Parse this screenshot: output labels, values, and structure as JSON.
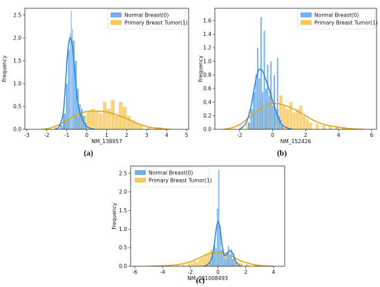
{
  "colors": {
    "normal": "#4C9BE8",
    "tumor": "#F6B93B",
    "normal_line": "#2E86DE",
    "tumor_line": "#E1A214"
  },
  "chart_data": [
    {
      "type": "histogram",
      "caption": "(a)",
      "xlabel": "NM_138957",
      "ylabel": "Frequency",
      "xlim": [
        -3.1,
        5.1
      ],
      "ylim": [
        0,
        2.65
      ],
      "xticks": [
        -3,
        -2,
        -1,
        0,
        1,
        2,
        3,
        4,
        5
      ],
      "yticks": [
        0.0,
        0.5,
        1.0,
        1.5,
        2.0,
        2.5
      ],
      "legend_position": "top-right",
      "series": [
        {
          "name": "Normal Breast(0)",
          "color_key": "normal",
          "bins": [
            {
              "x0": -1.35,
              "x1": -1.2,
              "y": 0.1
            },
            {
              "x0": -1.2,
              "x1": -1.05,
              "y": 0.35
            },
            {
              "x0": -1.05,
              "x1": -0.95,
              "y": 1.0
            },
            {
              "x0": -0.95,
              "x1": -0.85,
              "y": 1.75
            },
            {
              "x0": -0.85,
              "x1": -0.8,
              "y": 2.1
            },
            {
              "x0": -0.8,
              "x1": -0.75,
              "y": 2.6
            },
            {
              "x0": -0.75,
              "x1": -0.7,
              "y": 2.2
            },
            {
              "x0": -0.7,
              "x1": -0.6,
              "y": 1.95
            },
            {
              "x0": -0.6,
              "x1": -0.5,
              "y": 1.5
            },
            {
              "x0": -0.5,
              "x1": -0.4,
              "y": 0.9
            },
            {
              "x0": -0.4,
              "x1": -0.3,
              "y": 0.55
            },
            {
              "x0": -0.3,
              "x1": -0.2,
              "y": 0.45
            },
            {
              "x0": -0.2,
              "x1": -0.1,
              "y": 0.3
            },
            {
              "x0": -0.1,
              "x1": 0.0,
              "y": 0.15
            }
          ],
          "kde": {
            "x": [
              -1.6,
              -1.4,
              -1.2,
              -1.1,
              -1.0,
              -0.9,
              -0.8,
              -0.7,
              -0.6,
              -0.5,
              -0.4,
              -0.3,
              -0.2,
              -0.1,
              0.0,
              0.2,
              0.4
            ],
            "y": [
              0.0,
              0.05,
              0.3,
              0.75,
              1.45,
              1.9,
              2.0,
              1.75,
              1.25,
              0.75,
              0.45,
              0.3,
              0.2,
              0.12,
              0.06,
              0.02,
              0.0
            ]
          }
        },
        {
          "name": "Primary Breast Tumor(1)",
          "color_key": "tumor",
          "bins": [
            {
              "x0": -1.6,
              "x1": -1.4,
              "y": 0.05
            },
            {
              "x0": -1.2,
              "x1": -1.0,
              "y": 0.2
            },
            {
              "x0": -1.0,
              "x1": -0.8,
              "y": 0.25
            },
            {
              "x0": -0.6,
              "x1": -0.4,
              "y": 0.3
            },
            {
              "x0": -0.4,
              "x1": -0.2,
              "y": 0.35
            },
            {
              "x0": -0.2,
              "x1": 0.0,
              "y": 0.3
            },
            {
              "x0": 0.0,
              "x1": 0.2,
              "y": 0.4
            },
            {
              "x0": 0.2,
              "x1": 0.4,
              "y": 0.45
            },
            {
              "x0": 0.4,
              "x1": 0.6,
              "y": 0.4
            },
            {
              "x0": 0.6,
              "x1": 0.8,
              "y": 0.35
            },
            {
              "x0": 0.8,
              "x1": 1.0,
              "y": 0.6
            },
            {
              "x0": 1.0,
              "x1": 1.2,
              "y": 0.45
            },
            {
              "x0": 1.2,
              "x1": 1.4,
              "y": 0.65
            },
            {
              "x0": 1.4,
              "x1": 1.6,
              "y": 0.3
            },
            {
              "x0": 1.6,
              "x1": 1.8,
              "y": 0.6
            },
            {
              "x0": 1.8,
              "x1": 2.0,
              "y": 0.5
            },
            {
              "x0": 2.0,
              "x1": 2.2,
              "y": 0.3
            },
            {
              "x0": 2.2,
              "x1": 2.4,
              "y": 0.2
            },
            {
              "x0": 2.4,
              "x1": 2.6,
              "y": 0.15
            },
            {
              "x0": 2.6,
              "x1": 2.8,
              "y": 0.1
            },
            {
              "x0": 3.0,
              "x1": 3.2,
              "y": 0.05
            },
            {
              "x0": 3.4,
              "x1": 3.6,
              "y": 0.05
            },
            {
              "x0": 3.6,
              "x1": 3.8,
              "y": 0.05
            }
          ],
          "kde": {
            "x": [
              -2.2,
              -1.8,
              -1.4,
              -1.0,
              -0.6,
              -0.2,
              0.2,
              0.6,
              1.0,
              1.4,
              1.8,
              2.2,
              2.6,
              3.0,
              3.4,
              3.8,
              4.2
            ],
            "y": [
              0.0,
              0.03,
              0.1,
              0.2,
              0.3,
              0.37,
              0.4,
              0.4,
              0.38,
              0.33,
              0.27,
              0.19,
              0.12,
              0.06,
              0.03,
              0.01,
              0.0
            ]
          }
        }
      ]
    },
    {
      "type": "histogram",
      "caption": "(b)",
      "xlabel": "NM_152426",
      "ylabel": "Frequency",
      "xlim": [
        -3.5,
        6.3
      ],
      "ylim": [
        0,
        1.78
      ],
      "xticks": [
        -2,
        0,
        2,
        4,
        6
      ],
      "yticks": [
        0.0,
        0.2,
        0.4,
        0.6,
        0.8,
        1.0,
        1.2,
        1.4,
        1.6
      ],
      "legend_position": "top-right",
      "series": [
        {
          "name": "Normal Breast(0)",
          "color_key": "normal",
          "bins": [
            {
              "x0": -1.5,
              "x1": -1.35,
              "y": 0.1
            },
            {
              "x0": -1.35,
              "x1": -1.2,
              "y": 0.3
            },
            {
              "x0": -1.2,
              "x1": -1.05,
              "y": 0.55
            },
            {
              "x0": -1.05,
              "x1": -0.95,
              "y": 0.8
            },
            {
              "x0": -0.95,
              "x1": -0.85,
              "y": 1.2
            },
            {
              "x0": -0.85,
              "x1": -0.75,
              "y": 0.75
            },
            {
              "x0": -0.75,
              "x1": -0.65,
              "y": 1.65
            },
            {
              "x0": -0.65,
              "x1": -0.55,
              "y": 0.55
            },
            {
              "x0": -0.55,
              "x1": -0.45,
              "y": 1.45
            },
            {
              "x0": -0.45,
              "x1": -0.35,
              "y": 0.6
            },
            {
              "x0": -0.35,
              "x1": -0.25,
              "y": 0.95
            },
            {
              "x0": -0.25,
              "x1": -0.15,
              "y": 0.5
            },
            {
              "x0": -0.15,
              "x1": -0.05,
              "y": 1.0
            },
            {
              "x0": -0.05,
              "x1": 0.05,
              "y": 0.35
            },
            {
              "x0": 0.05,
              "x1": 0.15,
              "y": 0.8
            },
            {
              "x0": 0.15,
              "x1": 0.25,
              "y": 0.3
            },
            {
              "x0": 0.25,
              "x1": 0.35,
              "y": 1.05
            },
            {
              "x0": 0.35,
              "x1": 0.45,
              "y": 0.2
            },
            {
              "x0": 0.45,
              "x1": 0.55,
              "y": 0.15
            },
            {
              "x0": 0.55,
              "x1": 0.65,
              "y": 0.05
            }
          ],
          "kde": {
            "x": [
              -2.0,
              -1.6,
              -1.3,
              -1.0,
              -0.8,
              -0.6,
              -0.4,
              -0.2,
              0.0,
              0.2,
              0.4,
              0.6,
              0.9,
              1.2
            ],
            "y": [
              0.0,
              0.1,
              0.35,
              0.75,
              0.88,
              0.85,
              0.72,
              0.58,
              0.42,
              0.27,
              0.14,
              0.06,
              0.02,
              0.0
            ]
          }
        },
        {
          "name": "Primary Breast Tumor(1)",
          "color_key": "tumor",
          "bins": [
            {
              "x0": -2.0,
              "x1": -1.8,
              "y": 0.03
            },
            {
              "x0": -1.6,
              "x1": -1.4,
              "y": 0.1
            },
            {
              "x0": -1.2,
              "x1": -1.0,
              "y": 0.2
            },
            {
              "x0": -1.0,
              "x1": -0.8,
              "y": 0.25
            },
            {
              "x0": -0.8,
              "x1": -0.6,
              "y": 0.45
            },
            {
              "x0": -0.6,
              "x1": -0.4,
              "y": 0.3
            },
            {
              "x0": -0.4,
              "x1": -0.2,
              "y": 0.4
            },
            {
              "x0": -0.2,
              "x1": 0.0,
              "y": 0.55
            },
            {
              "x0": 0.0,
              "x1": 0.2,
              "y": 0.4
            },
            {
              "x0": 0.2,
              "x1": 0.4,
              "y": 0.3
            },
            {
              "x0": 0.4,
              "x1": 0.6,
              "y": 0.5
            },
            {
              "x0": 0.6,
              "x1": 0.8,
              "y": 0.35
            },
            {
              "x0": 0.8,
              "x1": 1.0,
              "y": 0.3
            },
            {
              "x0": 1.0,
              "x1": 1.2,
              "y": 0.4
            },
            {
              "x0": 1.2,
              "x1": 1.4,
              "y": 0.25
            },
            {
              "x0": 1.4,
              "x1": 1.6,
              "y": 0.3
            },
            {
              "x0": 1.6,
              "x1": 1.8,
              "y": 0.35
            },
            {
              "x0": 1.8,
              "x1": 2.0,
              "y": 0.2
            },
            {
              "x0": 2.0,
              "x1": 2.2,
              "y": 0.15
            },
            {
              "x0": 2.2,
              "x1": 2.4,
              "y": 0.1
            },
            {
              "x0": 2.6,
              "x1": 2.8,
              "y": 0.08
            },
            {
              "x0": 3.0,
              "x1": 3.2,
              "y": 0.06
            },
            {
              "x0": 3.4,
              "x1": 3.6,
              "y": 0.05
            },
            {
              "x0": 3.8,
              "x1": 4.0,
              "y": 0.05
            },
            {
              "x0": 4.2,
              "x1": 4.4,
              "y": 0.04
            }
          ],
          "kde": {
            "x": [
              -3.0,
              -2.5,
              -2.0,
              -1.5,
              -1.0,
              -0.5,
              0.0,
              0.5,
              1.0,
              1.5,
              2.0,
              2.5,
              3.0,
              3.5,
              4.0,
              4.5,
              5.0,
              5.5
            ],
            "y": [
              0.0,
              0.02,
              0.07,
              0.16,
              0.26,
              0.34,
              0.38,
              0.37,
              0.33,
              0.27,
              0.2,
              0.13,
              0.08,
              0.05,
              0.03,
              0.015,
              0.005,
              0.0
            ]
          }
        }
      ]
    },
    {
      "type": "histogram",
      "caption": "(c)",
      "xlabel": "NM_001008493",
      "ylabel": "Frequency",
      "xlim": [
        -6.3,
        4.8
      ],
      "ylim": [
        0,
        2.7
      ],
      "xticks": [
        -6,
        -4,
        -2,
        0,
        2,
        4
      ],
      "yticks": [
        0.0,
        0.5,
        1.0,
        1.5,
        2.0,
        2.5
      ],
      "legend_position": "top-left",
      "series": [
        {
          "name": "Normal Breast(0)",
          "color_key": "normal",
          "bins": [
            {
              "x0": -0.6,
              "x1": -0.45,
              "y": 0.1
            },
            {
              "x0": -0.45,
              "x1": -0.3,
              "y": 0.35
            },
            {
              "x0": -0.3,
              "x1": -0.2,
              "y": 0.7
            },
            {
              "x0": -0.2,
              "x1": -0.1,
              "y": 0.5
            },
            {
              "x0": -0.1,
              "x1": 0.0,
              "y": 1.55
            },
            {
              "x0": 0.0,
              "x1": 0.1,
              "y": 2.6
            },
            {
              "x0": 0.1,
              "x1": 0.2,
              "y": 1.1
            },
            {
              "x0": 0.2,
              "x1": 0.3,
              "y": 0.45
            },
            {
              "x0": 0.3,
              "x1": 0.4,
              "y": 0.5
            },
            {
              "x0": 0.4,
              "x1": 0.5,
              "y": 0.25
            },
            {
              "x0": 0.5,
              "x1": 0.6,
              "y": 0.2
            },
            {
              "x0": 0.6,
              "x1": 0.7,
              "y": 0.4
            },
            {
              "x0": 0.7,
              "x1": 0.8,
              "y": 0.55
            },
            {
              "x0": 0.8,
              "x1": 0.9,
              "y": 0.3
            },
            {
              "x0": 0.9,
              "x1": 1.0,
              "y": 0.45
            },
            {
              "x0": 1.0,
              "x1": 1.1,
              "y": 0.2
            },
            {
              "x0": 1.1,
              "x1": 1.2,
              "y": 0.35
            },
            {
              "x0": 1.2,
              "x1": 1.3,
              "y": 0.1
            }
          ],
          "kde": {
            "x": [
              -1.0,
              -0.7,
              -0.5,
              -0.3,
              -0.15,
              0.0,
              0.15,
              0.3,
              0.45,
              0.6,
              0.75,
              0.9,
              1.05,
              1.2,
              1.4,
              1.7
            ],
            "y": [
              0.0,
              0.06,
              0.18,
              0.5,
              0.95,
              1.2,
              1.0,
              0.55,
              0.3,
              0.3,
              0.38,
              0.42,
              0.35,
              0.2,
              0.06,
              0.0
            ]
          }
        },
        {
          "name": "Primary Breast Tumor(1)",
          "color_key": "tumor",
          "bins": [
            {
              "x0": -4.4,
              "x1": -4.2,
              "y": 0.03
            },
            {
              "x0": -3.0,
              "x1": -2.8,
              "y": 0.05
            },
            {
              "x0": -2.6,
              "x1": -2.4,
              "y": 0.05
            },
            {
              "x0": -2.2,
              "x1": -2.0,
              "y": 0.08
            },
            {
              "x0": -2.0,
              "x1": -1.8,
              "y": 0.1
            },
            {
              "x0": -1.8,
              "x1": -1.6,
              "y": 0.15
            },
            {
              "x0": -1.6,
              "x1": -1.4,
              "y": 0.12
            },
            {
              "x0": -1.4,
              "x1": -1.2,
              "y": 0.2
            },
            {
              "x0": -1.2,
              "x1": -1.0,
              "y": 0.25
            },
            {
              "x0": -1.0,
              "x1": -0.8,
              "y": 0.3
            },
            {
              "x0": -0.8,
              "x1": -0.6,
              "y": 0.35
            },
            {
              "x0": -0.6,
              "x1": -0.4,
              "y": 0.45
            },
            {
              "x0": -0.4,
              "x1": -0.2,
              "y": 0.55
            },
            {
              "x0": -0.2,
              "x1": 0.0,
              "y": 0.35
            },
            {
              "x0": 0.0,
              "x1": 0.2,
              "y": 0.4
            },
            {
              "x0": 0.2,
              "x1": 0.4,
              "y": 0.3
            },
            {
              "x0": 0.4,
              "x1": 0.6,
              "y": 0.35
            },
            {
              "x0": 0.6,
              "x1": 0.8,
              "y": 0.25
            },
            {
              "x0": 0.8,
              "x1": 1.0,
              "y": 0.3
            },
            {
              "x0": 1.0,
              "x1": 1.2,
              "y": 0.2
            },
            {
              "x0": 1.2,
              "x1": 1.4,
              "y": 0.15
            },
            {
              "x0": 1.4,
              "x1": 1.6,
              "y": 0.12
            },
            {
              "x0": 1.6,
              "x1": 1.8,
              "y": 0.08
            },
            {
              "x0": 2.0,
              "x1": 2.2,
              "y": 0.06
            },
            {
              "x0": 2.6,
              "x1": 2.8,
              "y": 0.05
            },
            {
              "x0": 3.0,
              "x1": 3.2,
              "y": 0.03
            }
          ],
          "kde": {
            "x": [
              -5.0,
              -4.0,
              -3.0,
              -2.5,
              -2.0,
              -1.5,
              -1.0,
              -0.5,
              0.0,
              0.5,
              1.0,
              1.5,
              2.0,
              2.5,
              3.0,
              3.5,
              4.0
            ],
            "y": [
              0.0,
              0.01,
              0.04,
              0.07,
              0.12,
              0.2,
              0.29,
              0.36,
              0.38,
              0.35,
              0.27,
              0.17,
              0.1,
              0.05,
              0.02,
              0.01,
              0.0
            ]
          }
        }
      ]
    }
  ]
}
